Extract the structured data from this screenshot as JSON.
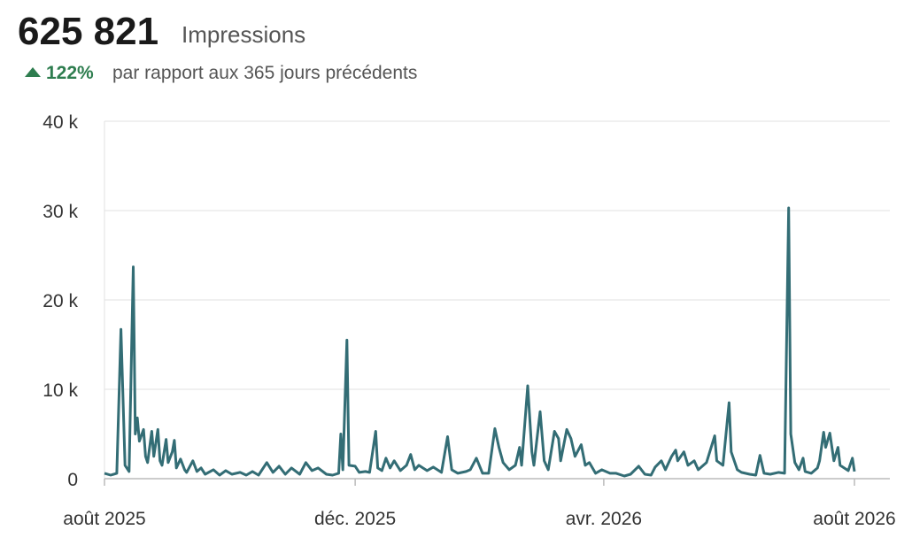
{
  "header": {
    "total": "625 821",
    "metric": "Impressions",
    "change": "122%",
    "comparison": "par rapport aux 365 jours précédents"
  },
  "chart_data": {
    "type": "line",
    "color": "#336d75",
    "grid": true,
    "xlim": [
      0,
      365
    ],
    "xticks": [
      {
        "value": 0,
        "label": "août 2025"
      },
      {
        "value": 122,
        "label": "déc. 2025"
      },
      {
        "value": 243,
        "label": "avr. 2026"
      },
      {
        "value": 365,
        "label": "août 2026"
      }
    ],
    "ylim": [
      0,
      40000
    ],
    "yticks": [
      0,
      {
        "value": 10000,
        "label": "10 k"
      },
      {
        "value": 20000,
        "label": "20 k"
      },
      {
        "value": 30000,
        "label": "30 k"
      },
      {
        "value": 40000,
        "label": "40 k"
      }
    ],
    "x": [
      0,
      3,
      6,
      8,
      10,
      12,
      14,
      15,
      16,
      17,
      19,
      20,
      21,
      23,
      24,
      26,
      27,
      28,
      30,
      31,
      33,
      34,
      35,
      37,
      39,
      40,
      43,
      45,
      47,
      49,
      53,
      56,
      59,
      62,
      66,
      69,
      72,
      75,
      79,
      82,
      85,
      88,
      91,
      95,
      98,
      101,
      104,
      108,
      111,
      114,
      115,
      116,
      118,
      119,
      122,
      124,
      127,
      129,
      132,
      133,
      135,
      137,
      139,
      141,
      144,
      147,
      149,
      151,
      153,
      157,
      160,
      164,
      167,
      169,
      172,
      176,
      178,
      181,
      184,
      187,
      190,
      192,
      194,
      197,
      200,
      202,
      203,
      206,
      208,
      209,
      212,
      214,
      216,
      219,
      221,
      222,
      225,
      227,
      229,
      232,
      234,
      236,
      239,
      242,
      246,
      249,
      253,
      256,
      260,
      263,
      266,
      268,
      271,
      273,
      276,
      278,
      279,
      282,
      284,
      287,
      289,
      293,
      297,
      298,
      301,
      304,
      305,
      308,
      310,
      314,
      317,
      319,
      321,
      324,
      328,
      331,
      333,
      334,
      336,
      338,
      340,
      341,
      344,
      347,
      348,
      350,
      351,
      353,
      355,
      357,
      358,
      360,
      362,
      364,
      365
    ],
    "values": [
      600,
      400,
      600,
      16700,
      1500,
      800,
      23700,
      5000,
      6800,
      4200,
      5500,
      2500,
      1800,
      5300,
      2500,
      5500,
      2000,
      1500,
      4400,
      1800,
      3000,
      4300,
      1200,
      2200,
      1000,
      700,
      2000,
      800,
      1200,
      500,
      1000,
      400,
      900,
      500,
      700,
      400,
      800,
      400,
      1800,
      700,
      1400,
      500,
      1200,
      500,
      1800,
      900,
      1200,
      500,
      400,
      600,
      5000,
      1000,
      15500,
      1500,
      1400,
      700,
      800,
      700,
      5300,
      1200,
      900,
      2300,
      1200,
      2000,
      900,
      1500,
      2700,
      1000,
      1500,
      900,
      1300,
      700,
      4700,
      1000,
      600,
      800,
      1000,
      2300,
      600,
      600,
      5600,
      3500,
      1800,
      1000,
      1500,
      3500,
      1500,
      10400,
      3000,
      1500,
      7500,
      2000,
      1000,
      5300,
      4500,
      2000,
      5500,
      4500,
      2500,
      3800,
      1500,
      1800,
      600,
      1000,
      600,
      600,
      300,
      500,
      1400,
      500,
      400,
      1300,
      2000,
      1000,
      2500,
      3200,
      2000,
      3000,
      1500,
      2000,
      1000,
      1800,
      4800,
      2000,
      1500,
      8500,
      3000,
      1000,
      700,
      500,
      400,
      2600,
      600,
      500,
      700,
      600,
      30300,
      5000,
      1800,
      1000,
      2300,
      800,
      600,
      1200,
      2000,
      5200,
      3500,
      5100,
      2000,
      3500,
      1500,
      1200,
      900,
      2300,
      800
    ]
  }
}
